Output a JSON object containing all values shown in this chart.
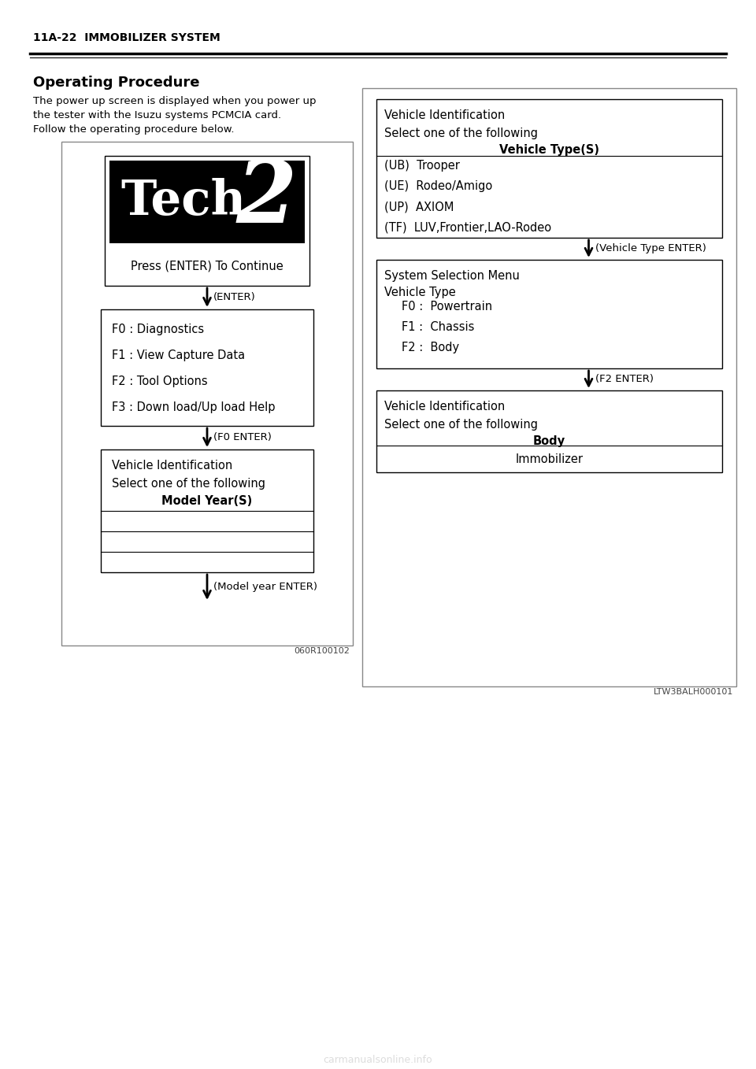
{
  "page_header": "11A-22  IMMOBILIZER SYSTEM",
  "section_title": "Operating Procedure",
  "body_text_line1": "The power up screen is displayed when you power up",
  "body_text_line2": "the tester with the Isuzu systems PCMCIA card.",
  "body_text_line3": "Follow the operating procedure below.",
  "left_diagram_code": "060R100102",
  "right_diagram_code": "LTW3BALH000101",
  "bg_color": "#ffffff",
  "left_menu_lines": [
    "F0 : Diagnostics",
    "F1 : View Capture Data",
    "F2 : Tool Options",
    "F3 : Down load/Up load Help"
  ],
  "left_vid_lines": [
    "Vehicle Identification",
    "Select one of the following",
    "Model Year(S)"
  ],
  "left_enter_label": "(ENTER)",
  "left_f0_label": "(F0 ENTER)",
  "left_model_year_label": "(Model year ENTER)",
  "right_vt_header": [
    "Vehicle Identification",
    "Select one of the following",
    "Vehicle Type(S)"
  ],
  "right_vt_options": [
    "(UB)  Trooper",
    "(UE)  Rodeo/Amigo",
    "(UP)  AXIOM",
    "(TF)  LUV,Frontier,LAO-Rodeo"
  ],
  "right_vt_arrow": "(Vehicle Type ENTER)",
  "right_sm_header": [
    "System Selection Menu",
    "Vehicle Type"
  ],
  "right_sm_options": [
    "F0 :  Powertrain",
    "F1 :  Chassis",
    "F2 :  Body"
  ],
  "right_sm_arrow": "(F2 ENTER)",
  "right_vid_header": [
    "Vehicle Identification",
    "Select one of the following",
    "Body"
  ],
  "right_vid_immobilizer": "Immobilizer"
}
